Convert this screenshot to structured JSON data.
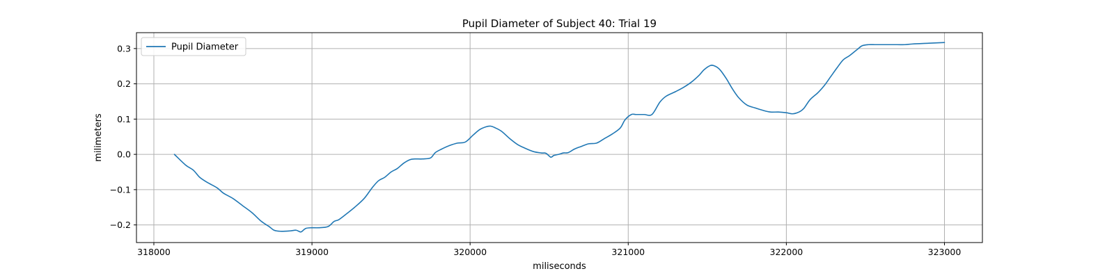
{
  "chart_data": {
    "type": "line",
    "title": "Pupil Diameter of Subject 40: Trial 19",
    "xlabel": "miliseconds",
    "ylabel": "milimeters",
    "xlim": [
      317890,
      323240
    ],
    "ylim": [
      -0.25,
      0.345
    ],
    "xticks": [
      318000,
      319000,
      320000,
      321000,
      322000,
      323000
    ],
    "xtick_labels": [
      "318000",
      "319000",
      "320000",
      "321000",
      "322000",
      "323000"
    ],
    "yticks": [
      -0.2,
      -0.1,
      0.0,
      0.1,
      0.2,
      0.3
    ],
    "ytick_labels": [
      "−0.2",
      "−0.1",
      "0.0",
      "0.1",
      "0.2",
      "0.3"
    ],
    "grid": true,
    "legend_position": "upper-left",
    "series": [
      {
        "name": "Pupil Diameter",
        "color": "#1f77b4",
        "x": [
          318130,
          318200,
          318250,
          318290,
          318340,
          318400,
          318440,
          318500,
          318560,
          318620,
          318680,
          318730,
          318760,
          318800,
          318860,
          318900,
          318930,
          318960,
          319000,
          319040,
          319100,
          319140,
          319170,
          319220,
          319270,
          319330,
          319380,
          319420,
          319460,
          319500,
          319540,
          319580,
          319620,
          319650,
          319700,
          319750,
          319780,
          319820,
          319870,
          319920,
          319970,
          320020,
          320060,
          320100,
          320130,
          320160,
          320200,
          320250,
          320300,
          320350,
          320400,
          320450,
          320480,
          320510,
          320530,
          320560,
          320590,
          320620,
          320660,
          320700,
          320750,
          320800,
          320850,
          320900,
          320950,
          320980,
          321020,
          321050,
          321100,
          321150,
          321200,
          321240,
          321300,
          321350,
          321400,
          321450,
          321480,
          321520,
          321550,
          321580,
          321620,
          321660,
          321700,
          321750,
          321800,
          321850,
          321900,
          321950,
          322000,
          322040,
          322080,
          322110,
          322150,
          322200,
          322240,
          322280,
          322320,
          322360,
          322400,
          322450,
          322480,
          322520,
          322560,
          322600,
          322700,
          322750,
          322800,
          322900,
          323000
        ],
        "y": [
          0.0,
          -0.03,
          -0.045,
          -0.065,
          -0.08,
          -0.095,
          -0.11,
          -0.125,
          -0.145,
          -0.165,
          -0.19,
          -0.205,
          -0.215,
          -0.218,
          -0.217,
          -0.215,
          -0.22,
          -0.21,
          -0.208,
          -0.208,
          -0.205,
          -0.19,
          -0.185,
          -0.168,
          -0.15,
          -0.125,
          -0.095,
          -0.075,
          -0.065,
          -0.05,
          -0.04,
          -0.025,
          -0.015,
          -0.013,
          -0.013,
          -0.01,
          0.005,
          0.015,
          0.025,
          0.032,
          0.035,
          0.055,
          0.07,
          0.078,
          0.08,
          0.075,
          0.065,
          0.045,
          0.028,
          0.017,
          0.008,
          0.004,
          0.003,
          -0.008,
          -0.003,
          0.0,
          0.004,
          0.005,
          0.015,
          0.022,
          0.03,
          0.032,
          0.045,
          0.058,
          0.075,
          0.098,
          0.113,
          0.113,
          0.113,
          0.113,
          0.148,
          0.165,
          0.178,
          0.19,
          0.205,
          0.225,
          0.24,
          0.252,
          0.25,
          0.24,
          0.215,
          0.185,
          0.16,
          0.14,
          0.132,
          0.125,
          0.12,
          0.12,
          0.118,
          0.115,
          0.12,
          0.13,
          0.155,
          0.175,
          0.195,
          0.22,
          0.245,
          0.268,
          0.28,
          0.298,
          0.308,
          0.311,
          0.311,
          0.311,
          0.311,
          0.311,
          0.313,
          0.315,
          0.317
        ]
      }
    ]
  }
}
